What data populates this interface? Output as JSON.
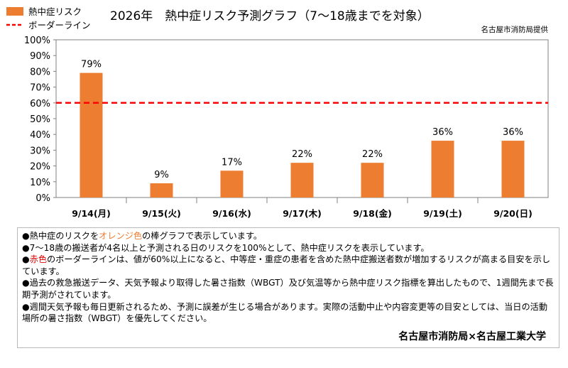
{
  "chart_data": {
    "type": "bar",
    "title": "2026年　熱中症リスク予測グラフ（7～18歳までを対象）",
    "source": "名古屋市消防局提供",
    "categories": [
      "9/14(月)",
      "9/15(火)",
      "9/16(水)",
      "9/17(木)",
      "9/18(金)",
      "9/19(土)",
      "9/20(日)"
    ],
    "series": [
      {
        "name": "熱中症リスク",
        "values": [
          79,
          9,
          17,
          22,
          22,
          36,
          36
        ],
        "color": "#ED7D31"
      }
    ],
    "data_labels": [
      "79%",
      "9%",
      "17%",
      "22%",
      "22%",
      "36%",
      "36%"
    ],
    "border_line": {
      "name": "ボーダーライン",
      "value": 60,
      "color": "#FF0000"
    },
    "yticks": [
      "0%",
      "10%",
      "20%",
      "30%",
      "40%",
      "50%",
      "60%",
      "70%",
      "80%",
      "90%",
      "100%"
    ],
    "ylim": [
      0,
      100
    ],
    "grid": false,
    "legend": "top-left"
  },
  "notes": {
    "line1": {
      "pre": "●熱中症のリスクを",
      "highlight": "オレンジ色",
      "post": "の棒グラフで表示しています。"
    },
    "line2": "●7～18歳の搬送者が4名以上と予測される日のリスクを100%として、熱中症リスクを表示しています。",
    "line3": {
      "pre": "●",
      "highlight": "赤色",
      "post": "のボーダーラインは、値が60%以上になると、中等症・重症の患者を含めた熱中症搬送者数が増加するリスクが高まる目安を示しています。"
    },
    "line4": "●過去の救急搬送データ、天気予報より取得した暑さ指数（WBGT）及び気温等から熱中症リスク指標を算出したもので、1週間先まで長期予測がされています。",
    "line5": "●週間天気予報も毎日更新されるため、予測に誤差が生じる場合があります。実際の活動中止や内容変更等の目安としては、当日の活動場所の暑さ指数（WBGT）を優先してください。",
    "credit": "名古屋市消防局×名古屋工業大学"
  }
}
